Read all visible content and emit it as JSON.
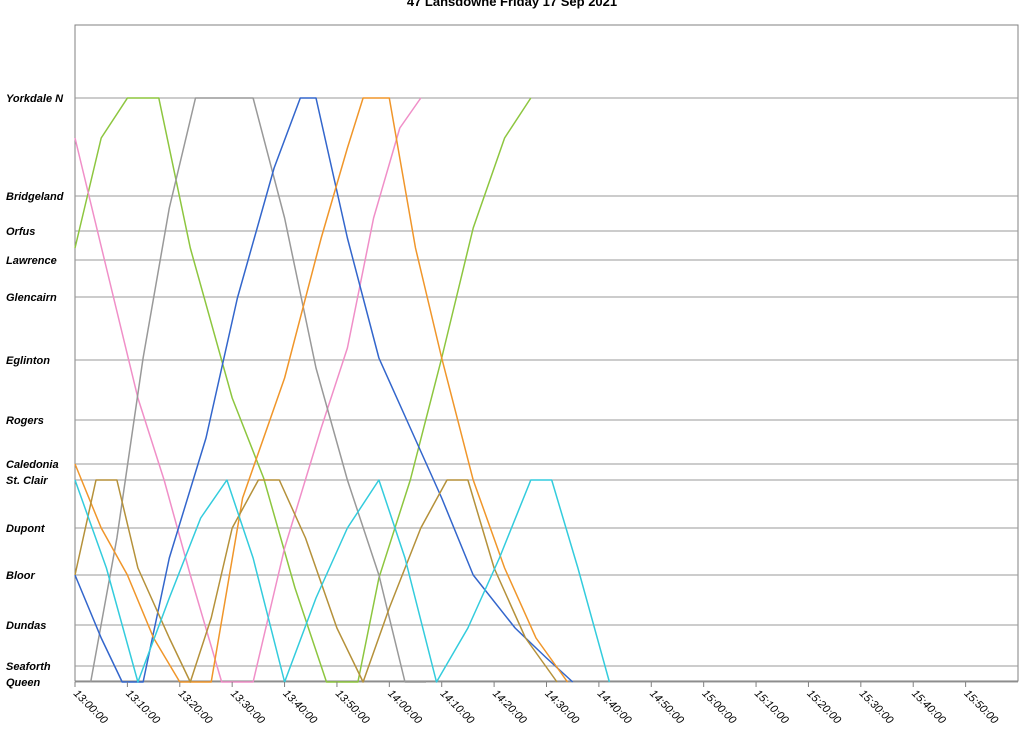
{
  "chart_data": {
    "type": "line",
    "title": "47 Lansdowne Friday 17 Sep 2021",
    "xlabel": "",
    "ylabel": "",
    "x_range": [
      "13:00:00",
      "16:00:00"
    ],
    "x_ticks": [
      "13:00:00",
      "13:10:00",
      "13:20:00",
      "13:30:00",
      "13:40:00",
      "13:50:00",
      "14:00:00",
      "14:10:00",
      "14:20:00",
      "14:30:00",
      "14:40:00",
      "14:50:00",
      "15:00:00",
      "15:10:00",
      "15:20:00",
      "15:30:00",
      "15:40:00",
      "15:50:00"
    ],
    "stops": [
      {
        "name": "Yorkdale N",
        "pos": 0
      },
      {
        "name": "Bridgeland",
        "pos": 98
      },
      {
        "name": "Orfus",
        "pos": 133
      },
      {
        "name": "Lawrence",
        "pos": 162
      },
      {
        "name": "Glencairn",
        "pos": 199
      },
      {
        "name": "Eglinton",
        "pos": 262
      },
      {
        "name": "Rogers",
        "pos": 322
      },
      {
        "name": "Caledonia",
        "pos": 366
      },
      {
        "name": "St. Clair",
        "pos": 382
      },
      {
        "name": "Dupont",
        "pos": 430
      },
      {
        "name": "Bloor",
        "pos": 477
      },
      {
        "name": "Dundas",
        "pos": 527
      },
      {
        "name": "Seaforth",
        "pos": 568
      },
      {
        "name": "Queen",
        "pos": 584
      }
    ],
    "stop_range": [
      0,
      584
    ],
    "grid": true,
    "legend": "none",
    "series": [
      {
        "color": "#8DC63F",
        "points": [
          [
            "13:00:00",
            150
          ],
          [
            "13:05:00",
            40
          ],
          [
            "13:10:00",
            0
          ],
          [
            "13:16:00",
            0
          ],
          [
            "13:22:00",
            150
          ],
          [
            "13:30:00",
            300
          ],
          [
            "13:36:00",
            380
          ],
          [
            "13:42:00",
            490
          ],
          [
            "13:48:00",
            584
          ],
          [
            "13:54:00",
            584
          ],
          [
            "13:58:00",
            480
          ],
          [
            "14:04:00",
            382
          ],
          [
            "14:10:00",
            260
          ],
          [
            "14:16:00",
            130
          ],
          [
            "14:22:00",
            40
          ],
          [
            "14:27:00",
            0
          ]
        ]
      },
      {
        "color": "#F08FC8",
        "points": [
          [
            "13:00:00",
            40
          ],
          [
            "13:06:00",
            170
          ],
          [
            "13:12:00",
            300
          ],
          [
            "13:17:00",
            382
          ],
          [
            "13:22:00",
            477
          ],
          [
            "13:28:00",
            584
          ],
          [
            "13:34:00",
            584
          ],
          [
            "13:40:00",
            450
          ],
          [
            "13:47:00",
            330
          ],
          [
            "13:52:00",
            250
          ],
          [
            "13:57:00",
            120
          ],
          [
            "14:02:00",
            30
          ],
          [
            "14:06:00",
            0
          ]
        ]
      },
      {
        "color": "#999999",
        "points": [
          [
            "13:03:00",
            584
          ],
          [
            "13:08:00",
            440
          ],
          [
            "13:13:00",
            260
          ],
          [
            "13:18:00",
            110
          ],
          [
            "13:23:00",
            0
          ],
          [
            "13:34:00",
            0
          ],
          [
            "13:40:00",
            120
          ],
          [
            "13:46:00",
            270
          ],
          [
            "13:52:00",
            382
          ],
          [
            "13:58:00",
            477
          ],
          [
            "14:03:00",
            584
          ],
          [
            "14:07:00",
            584
          ]
        ]
      },
      {
        "color": "#3366CC",
        "points": [
          [
            "13:00:00",
            477
          ],
          [
            "13:05:00",
            540
          ],
          [
            "13:09:00",
            584
          ],
          [
            "13:13:00",
            584
          ],
          [
            "13:18:00",
            460
          ],
          [
            "13:25:00",
            340
          ],
          [
            "13:31:00",
            200
          ],
          [
            "13:38:00",
            70
          ],
          [
            "13:43:00",
            0
          ],
          [
            "13:46:00",
            0
          ],
          [
            "13:52:00",
            140
          ],
          [
            "13:58:00",
            260
          ],
          [
            "14:04:00",
            330
          ],
          [
            "14:10:00",
            400
          ],
          [
            "14:16:00",
            477
          ],
          [
            "14:24:00",
            530
          ],
          [
            "14:30:00",
            560
          ],
          [
            "14:35:00",
            584
          ]
        ]
      },
      {
        "color": "#F0962A",
        "points": [
          [
            "13:00:00",
            366
          ],
          [
            "13:05:00",
            430
          ],
          [
            "13:10:00",
            477
          ],
          [
            "13:15:00",
            540
          ],
          [
            "13:20:00",
            584
          ],
          [
            "13:26:00",
            584
          ],
          [
            "13:32:00",
            400
          ],
          [
            "13:40:00",
            280
          ],
          [
            "13:47:00",
            140
          ],
          [
            "13:52:00",
            50
          ],
          [
            "13:55:00",
            0
          ],
          [
            "14:00:00",
            0
          ],
          [
            "14:05:00",
            150
          ],
          [
            "14:10:00",
            260
          ],
          [
            "14:16:00",
            382
          ],
          [
            "14:22:00",
            470
          ],
          [
            "14:28:00",
            540
          ],
          [
            "14:34:00",
            584
          ]
        ]
      },
      {
        "color": "#B5913A",
        "points": [
          [
            "13:00:00",
            477
          ],
          [
            "13:04:00",
            382
          ],
          [
            "13:08:00",
            382
          ],
          [
            "13:12:00",
            470
          ],
          [
            "13:18:00",
            540
          ],
          [
            "13:22:00",
            584
          ],
          [
            "13:26:00",
            520
          ],
          [
            "13:30:00",
            430
          ],
          [
            "13:35:00",
            382
          ],
          [
            "13:39:00",
            382
          ],
          [
            "13:44:00",
            440
          ],
          [
            "13:50:00",
            530
          ],
          [
            "13:55:00",
            584
          ],
          [
            "14:00:00",
            510
          ],
          [
            "14:06:00",
            430
          ],
          [
            "14:11:00",
            382
          ],
          [
            "14:15:00",
            382
          ],
          [
            "14:20:00",
            470
          ],
          [
            "14:26:00",
            540
          ],
          [
            "14:32:00",
            584
          ]
        ]
      },
      {
        "color": "#33CCDD",
        "points": [
          [
            "13:00:00",
            382
          ],
          [
            "13:06:00",
            470
          ],
          [
            "13:12:00",
            584
          ],
          [
            "13:18:00",
            500
          ],
          [
            "13:24:00",
            420
          ],
          [
            "13:29:00",
            382
          ],
          [
            "13:34:00",
            460
          ],
          [
            "13:40:00",
            584
          ],
          [
            "13:46:00",
            500
          ],
          [
            "13:52:00",
            430
          ],
          [
            "13:58:00",
            382
          ],
          [
            "14:03:00",
            460
          ],
          [
            "14:09:00",
            584
          ],
          [
            "14:15:00",
            530
          ],
          [
            "14:21:00",
            460
          ],
          [
            "14:27:00",
            382
          ],
          [
            "14:31:00",
            382
          ],
          [
            "14:36:00",
            470
          ],
          [
            "14:42:00",
            584
          ]
        ]
      }
    ]
  }
}
